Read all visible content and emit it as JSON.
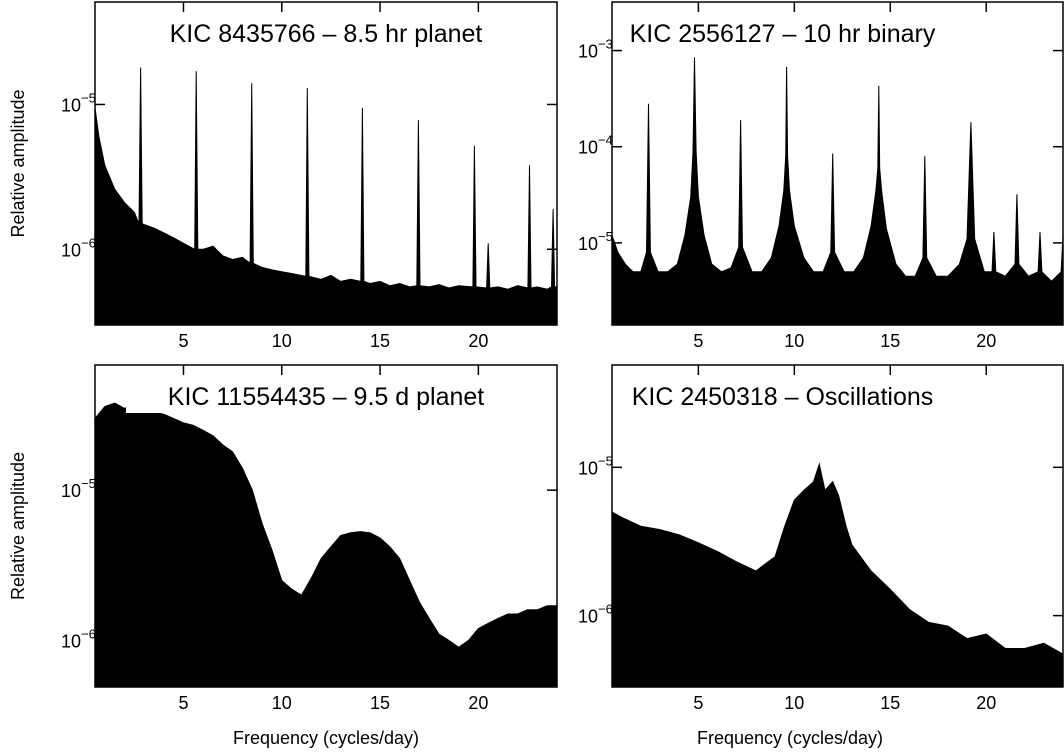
{
  "chart_data": [
    {
      "type": "area",
      "title": "KIC  8435766 – 8.5 hr planet",
      "ylabel": "Relative amplitude",
      "color": "#000000",
      "log_y": true,
      "xlim": [
        0.5,
        24
      ],
      "ylim": [
        3e-07,
        5.1e-05
      ],
      "xticks": [
        5,
        10,
        15,
        20
      ],
      "yticks": [
        {
          "value": 1e-06,
          "label": "10",
          "exp": "−6"
        },
        {
          "value": 1e-05,
          "label": "10",
          "exp": "−5"
        }
      ],
      "x": [
        0.5,
        0.7,
        1.0,
        1.5,
        2.0,
        2.5,
        2.74,
        2.82,
        2.9,
        3.5,
        4.0,
        4.5,
        5.0,
        5.57,
        5.65,
        5.73,
        6.0,
        6.5,
        7.0,
        7.5,
        8.0,
        8.39,
        8.47,
        8.55,
        9.0,
        9.5,
        10.0,
        10.5,
        11.22,
        11.3,
        11.38,
        12.0,
        12.5,
        13.0,
        13.5,
        14.02,
        14.1,
        14.18,
        14.5,
        15.0,
        15.5,
        16.0,
        16.5,
        16.87,
        16.95,
        17.03,
        17.5,
        18.0,
        18.5,
        19.0,
        19.72,
        19.8,
        19.88,
        20.42,
        20.5,
        20.58,
        21.0,
        21.5,
        22.0,
        22.52,
        22.6,
        22.68,
        23.0,
        23.5,
        23.72,
        23.8,
        23.88,
        24.0
      ],
      "values": [
        9.5e-06,
        6e-06,
        3.8e-06,
        2.6e-06,
        2.1e-06,
        1.8e-06,
        1.5e-06,
        1.8e-05,
        1.5e-06,
        1.4e-06,
        1.3e-06,
        1.2e-06,
        1.1e-06,
        1e-06,
        1.7e-05,
        1e-06,
        1e-06,
        1.05e-06,
        9e-07,
        8.5e-07,
        8.8e-07,
        8e-07,
        1.4e-05,
        8e-07,
        7.5e-07,
        7.2e-07,
        7e-07,
        6.8e-07,
        6.5e-07,
        1.3e-05,
        6.5e-07,
        6.2e-07,
        6.6e-07,
        6e-07,
        6.2e-07,
        6e-07,
        9.5e-06,
        6e-07,
        5.8e-07,
        6e-07,
        5.6e-07,
        5.8e-07,
        5.5e-07,
        5.6e-07,
        7.8e-06,
        5.6e-07,
        5.5e-07,
        5.7e-07,
        5.4e-07,
        5.6e-07,
        5.5e-07,
        5.2e-06,
        5.5e-07,
        5.4e-07,
        1.1e-06,
        5.4e-07,
        5.5e-07,
        5.3e-07,
        5.6e-07,
        5.4e-07,
        3.8e-06,
        5.4e-07,
        5.5e-07,
        5.3e-07,
        5.5e-07,
        1.9e-06,
        5.5e-07,
        5.5e-07
      ]
    },
    {
      "type": "area",
      "title": "KIC  2556127 – 10 hr binary",
      "color": "#000000",
      "log_y": true,
      "xlim": [
        0.5,
        24
      ],
      "ylim": [
        1.4e-06,
        0.0032
      ],
      "xticks": [
        5,
        10,
        15,
        20
      ],
      "yticks": [
        {
          "value": 1e-05,
          "label": "10",
          "exp": "−5"
        },
        {
          "value": 0.0001,
          "label": "10",
          "exp": "−4"
        },
        {
          "value": 0.001,
          "label": "10",
          "exp": "−3"
        }
      ],
      "x": [
        0.5,
        0.8,
        1.2,
        1.6,
        2.0,
        2.3,
        2.4,
        2.5,
        2.9,
        3.4,
        3.9,
        4.3,
        4.6,
        4.72,
        4.8,
        4.88,
        5.0,
        5.3,
        5.7,
        6.2,
        6.7,
        7.1,
        7.2,
        7.3,
        7.8,
        8.3,
        8.8,
        9.2,
        9.45,
        9.55,
        9.6,
        9.65,
        9.75,
        10.0,
        10.5,
        11.0,
        11.5,
        11.9,
        12.0,
        12.1,
        12.6,
        13.1,
        13.6,
        14.0,
        14.25,
        14.35,
        14.4,
        14.45,
        14.55,
        14.8,
        15.3,
        15.8,
        16.3,
        16.7,
        16.8,
        16.9,
        17.4,
        18.0,
        18.6,
        19.0,
        19.2,
        19.4,
        19.9,
        20.3,
        20.4,
        20.5,
        21.0,
        21.5,
        21.6,
        21.7,
        22.2,
        22.7,
        22.8,
        22.9,
        23.4,
        23.9,
        24.0
      ],
      "values": [
        1.2e-05,
        8e-06,
        6e-06,
        5e-06,
        5e-06,
        8e-06,
        0.00028,
        8e-06,
        5e-06,
        5e-06,
        6e-06,
        1.2e-05,
        3e-05,
        9e-05,
        0.00085,
        9e-05,
        3e-05,
        1.2e-05,
        6e-06,
        5e-06,
        5.5e-06,
        9e-06,
        0.00019,
        9e-06,
        5e-06,
        5e-06,
        7e-06,
        1.5e-05,
        3.5e-05,
        8e-05,
        0.00068,
        8e-05,
        3.5e-05,
        1.5e-05,
        7e-06,
        5e-06,
        5e-06,
        8e-06,
        8.5e-05,
        8e-06,
        5e-06,
        5e-06,
        7e-06,
        1.5e-05,
        3.5e-05,
        6e-05,
        0.00043,
        6e-05,
        3.5e-05,
        1.4e-05,
        6e-06,
        4.5e-06,
        4.5e-06,
        7e-06,
        8e-05,
        7e-06,
        4.5e-06,
        4.5e-06,
        6e-06,
        1.1e-05,
        0.00018,
        1.1e-05,
        5e-06,
        5e-06,
        1.3e-05,
        5e-06,
        4.5e-06,
        6e-06,
        3.2e-05,
        6e-06,
        4.5e-06,
        5e-06,
        1.3e-05,
        5e-06,
        4e-06,
        5e-06,
        1.2e-05
      ]
    },
    {
      "type": "area",
      "title": "KIC 11554435 – 9.5 d planet",
      "xlabel": "Frequency (cycles/day)",
      "ylabel": "Relative amplitude",
      "color": "#000000",
      "log_y": true,
      "xlim": [
        0.5,
        24
      ],
      "ylim": [
        4.9e-07,
        6.8e-05
      ],
      "xticks": [
        5,
        10,
        15,
        20
      ],
      "yticks": [
        {
          "value": 1e-06,
          "label": "10",
          "exp": "−6"
        },
        {
          "value": 1e-05,
          "label": "10",
          "exp": "−5"
        }
      ],
      "x": [
        0.5,
        1.0,
        1.5,
        2.0,
        2.5,
        3.0,
        3.5,
        4.0,
        4.5,
        5.0,
        5.5,
        6.0,
        6.5,
        7.0,
        7.5,
        8.0,
        8.5,
        9.0,
        9.5,
        10.0,
        10.5,
        11.0,
        11.5,
        12.0,
        12.5,
        13.0,
        13.5,
        14.0,
        14.5,
        15.0,
        15.5,
        16.0,
        16.5,
        17.0,
        17.5,
        18.0,
        18.5,
        19.0,
        19.5,
        20.0,
        20.5,
        21.0,
        21.5,
        22.0,
        22.5,
        23.0,
        23.5,
        24.0
      ],
      "values": [
        3e-05,
        3.6e-05,
        3.8e-05,
        3.5e-05,
        3.7e-05,
        3.5e-05,
        3.3e-05,
        3.2e-05,
        3e-05,
        2.8e-05,
        2.7e-05,
        2.5e-05,
        2.3e-05,
        2e-05,
        1.8e-05,
        1.4e-05,
        1e-05,
        6e-06,
        4e-06,
        2.5e-06,
        2.2e-06,
        2e-06,
        2.6e-06,
        3.5e-06,
        4.2e-06,
        5e-06,
        5.2e-06,
        5.3e-06,
        5.2e-06,
        4.8e-06,
        4.2e-06,
        3.5e-06,
        2.5e-06,
        1.8e-06,
        1.4e-06,
        1.1e-06,
        1e-06,
        9e-07,
        1e-06,
        1.2e-06,
        1.3e-06,
        1.4e-06,
        1.5e-06,
        1.5e-06,
        1.6e-06,
        1.6e-06,
        1.7e-06,
        1.7e-06
      ]
    },
    {
      "type": "area",
      "title": "KIC  2450318 – Oscillations",
      "xlabel": "Frequency (cycles/day)",
      "color": "#000000",
      "log_y": true,
      "xlim": [
        0.5,
        24
      ],
      "ylim": [
        3.3e-07,
        4.9e-05
      ],
      "xticks": [
        5,
        10,
        15,
        20
      ],
      "yticks": [
        {
          "value": 1e-06,
          "label": "10",
          "exp": "−6"
        },
        {
          "value": 1e-05,
          "label": "10",
          "exp": "−5"
        }
      ],
      "x": [
        0.5,
        1.0,
        2.0,
        3.0,
        4.0,
        5.0,
        6.0,
        7.0,
        8.0,
        9.0,
        9.5,
        10.0,
        10.5,
        11.0,
        11.3,
        11.6,
        12.0,
        12.3,
        12.7,
        13.0,
        14.0,
        15.0,
        16.0,
        17.0,
        18.0,
        19.0,
        20.0,
        21.0,
        22.0,
        23.0,
        24.0
      ],
      "values": [
        5e-06,
        4.6e-06,
        4e-06,
        3.8e-06,
        3.5e-06,
        3.1e-06,
        2.7e-06,
        2.3e-06,
        2e-06,
        2.5e-06,
        4e-06,
        6e-06,
        7e-06,
        8e-06,
        1.05e-05,
        7e-06,
        8e-06,
        6.5e-06,
        4e-06,
        3e-06,
        2e-06,
        1.5e-06,
        1.1e-06,
        9e-07,
        8.5e-07,
        7e-07,
        7.5e-07,
        6e-07,
        6e-07,
        6.5e-07,
        5.5e-07
      ]
    }
  ]
}
